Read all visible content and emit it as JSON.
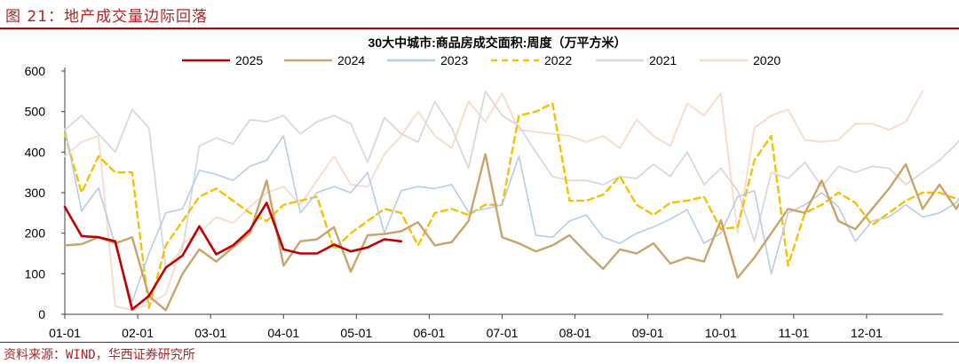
{
  "figure": {
    "title": "图 21：地产成交量边际回落",
    "source": "资料来源：WIND，华西证券研究所"
  },
  "colors": {
    "title": "#b22222",
    "rule": "#c00000",
    "axis": "#404040"
  },
  "chart_data": {
    "type": "line",
    "title": "30大中城市:商品房成交面积:周度（万平方米）",
    "xlabel": "",
    "ylabel": "",
    "ylim": [
      0,
      600
    ],
    "yticks": [
      0,
      100,
      200,
      300,
      400,
      500,
      600
    ],
    "xtick_labels": [
      "01-01",
      "02-01",
      "03-01",
      "04-01",
      "05-01",
      "06-01",
      "07-01",
      "08-01",
      "09-01",
      "10-01",
      "11-01",
      "12-01"
    ],
    "x_unit": "week of year",
    "grid": false,
    "legend_position": "top",
    "series": [
      {
        "name": "2025",
        "color": "#c00000",
        "width": 2.6,
        "dash": "",
        "values": [
          265,
          193,
          190,
          180,
          12,
          45,
          115,
          145,
          217,
          148,
          170,
          208,
          275,
          160,
          150,
          150,
          172,
          155,
          165,
          185,
          180
        ]
      },
      {
        "name": "2024",
        "color": "#c8a46a",
        "width": 2.4,
        "dash": "",
        "values": [
          170,
          173,
          190,
          175,
          190,
          45,
          10,
          100,
          160,
          130,
          165,
          200,
          330,
          120,
          180,
          185,
          215,
          105,
          195,
          198,
          205,
          227,
          170,
          178,
          230,
          395,
          190,
          175,
          155,
          170,
          195,
          152,
          112,
          160,
          150,
          175,
          125,
          140,
          130,
          232,
          90,
          140,
          200,
          260,
          250,
          330,
          230,
          210,
          260,
          310,
          370,
          260,
          320,
          260,
          330,
          450
        ]
      },
      {
        "name": "2023",
        "color": "#b8cce4",
        "width": 1.6,
        "dash": "",
        "values": [
          458,
          255,
          312,
          170,
          30,
          150,
          250,
          260,
          355,
          345,
          330,
          365,
          380,
          440,
          250,
          300,
          315,
          300,
          350,
          200,
          305,
          315,
          310,
          320,
          252,
          260,
          270,
          390,
          195,
          190,
          230,
          245,
          190,
          175,
          200,
          215,
          235,
          258,
          175,
          200,
          290,
          305,
          100,
          250,
          270,
          300,
          265,
          180,
          230,
          240,
          270,
          240,
          250,
          275,
          340,
          395
        ]
      },
      {
        "name": "2022",
        "color": "#f5c100",
        "width": 2.4,
        "dash": "7,5",
        "values": [
          445,
          300,
          390,
          350,
          350,
          15,
          170,
          230,
          290,
          310,
          280,
          250,
          230,
          270,
          280,
          290,
          160,
          200,
          230,
          260,
          250,
          170,
          250,
          260,
          245,
          270,
          270,
          490,
          500,
          520,
          280,
          280,
          295,
          340,
          270,
          245,
          275,
          280,
          290,
          210,
          215,
          380,
          440,
          120,
          250,
          270,
          300,
          275,
          220,
          250,
          280,
          300,
          300,
          285,
          280,
          340
        ]
      },
      {
        "name": "2021",
        "color": "#d9d9d9",
        "width": 1.8,
        "dash": "",
        "values": [
          455,
          490,
          445,
          400,
          505,
          460,
          115,
          160,
          415,
          435,
          420,
          480,
          475,
          490,
          445,
          475,
          490,
          470,
          375,
          485,
          445,
          425,
          525,
          460,
          360,
          550,
          490,
          465,
          400,
          340,
          330,
          330,
          320,
          340,
          335,
          370,
          340,
          400,
          320,
          360,
          305,
          180,
          350,
          335,
          375,
          315,
          365,
          350,
          365,
          360,
          320,
          350,
          380,
          420,
          470
        ]
      },
      {
        "name": "2020",
        "color": "#f8dcd0",
        "width": 2.0,
        "dash": "",
        "values": [
          390,
          425,
          440,
          20,
          10,
          25,
          50,
          175,
          200,
          240,
          225,
          265,
          300,
          315,
          270,
          330,
          390,
          320,
          315,
          395,
          440,
          500,
          440,
          410,
          525,
          475,
          545,
          455,
          450,
          445,
          440,
          425,
          440,
          410,
          480,
          440,
          415,
          520,
          490,
          545,
          200,
          460,
          490,
          505,
          430,
          425,
          430,
          470,
          470,
          455,
          475,
          550
        ]
      }
    ]
  }
}
